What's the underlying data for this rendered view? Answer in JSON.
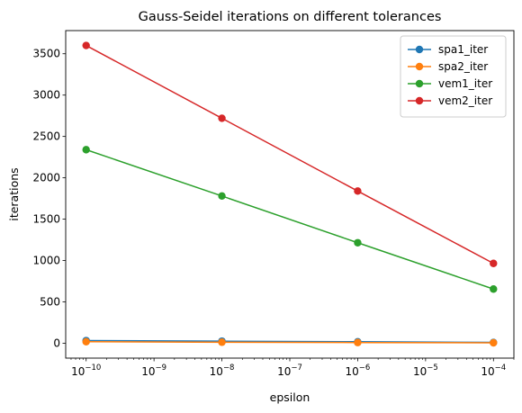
{
  "chart_data": {
    "type": "line",
    "title": "Gauss-Seidel iterations on different tolerances",
    "xlabel": "epsilon",
    "ylabel": "iterations",
    "x_scale": "log",
    "x": [
      1e-10,
      1e-08,
      1e-06,
      0.0001
    ],
    "xlim": [
      5e-11,
      0.0002
    ],
    "ylim": [
      -180,
      3780
    ],
    "x_ticks": [
      {
        "value": 1e-10,
        "mant": "10",
        "exp": "−10"
      },
      {
        "value": 1e-09,
        "mant": "10",
        "exp": "−9"
      },
      {
        "value": 1e-08,
        "mant": "10",
        "exp": "−8"
      },
      {
        "value": 1e-07,
        "mant": "10",
        "exp": "−7"
      },
      {
        "value": 1e-06,
        "mant": "10",
        "exp": "−6"
      },
      {
        "value": 1e-05,
        "mant": "10",
        "exp": "−5"
      },
      {
        "value": 0.0001,
        "mant": "10",
        "exp": "−4"
      }
    ],
    "y_ticks": [
      0,
      500,
      1000,
      1500,
      2000,
      2500,
      3000,
      3500
    ],
    "grid": false,
    "legend_position": "top-right",
    "series": [
      {
        "name": "spa1_iter",
        "color": "#1f77b4",
        "values": [
          32,
          25,
          18,
          10
        ]
      },
      {
        "name": "spa2_iter",
        "color": "#ff7f0e",
        "values": [
          18,
          12,
          8,
          5
        ]
      },
      {
        "name": "vem1_iter",
        "color": "#2ca02c",
        "values": [
          2340,
          1780,
          1215,
          655
        ]
      },
      {
        "name": "vem2_iter",
        "color": "#d62728",
        "values": [
          3600,
          2720,
          1840,
          965
        ]
      }
    ]
  }
}
